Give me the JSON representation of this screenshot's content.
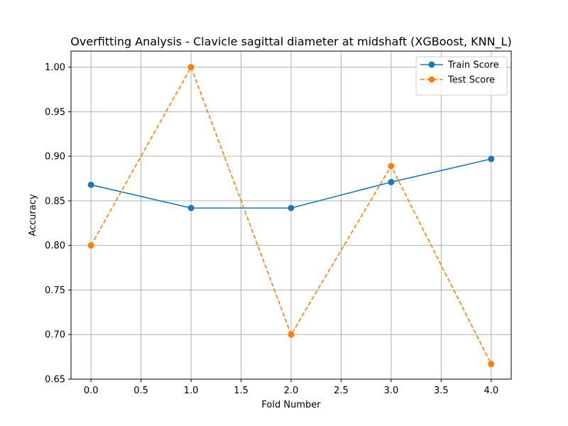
{
  "chart_data": {
    "type": "line",
    "title": "Overfitting Analysis - Clavicle sagittal diameter at midshaft (XGBoost, KNN_L)",
    "xlabel": "Fold Number",
    "ylabel": "Accuracy",
    "xlim": [
      -0.2,
      4.2
    ],
    "ylim": [
      0.65,
      1.018
    ],
    "xticks": [
      0.0,
      0.5,
      1.0,
      1.5,
      2.0,
      2.5,
      3.0,
      3.5,
      4.0
    ],
    "xtick_labels": [
      "0.0",
      "0.5",
      "1.0",
      "1.5",
      "2.0",
      "2.5",
      "3.0",
      "3.5",
      "4.0"
    ],
    "yticks": [
      0.65,
      0.7,
      0.75,
      0.8,
      0.85,
      0.9,
      0.95,
      1.0
    ],
    "ytick_labels": [
      "0.65",
      "0.70",
      "0.75",
      "0.80",
      "0.85",
      "0.90",
      "0.95",
      "1.00"
    ],
    "grid": true,
    "legend_position": "top-right",
    "x": [
      0,
      1,
      2,
      3,
      4
    ],
    "series": [
      {
        "name": "Train Score",
        "values": [
          0.868,
          0.842,
          0.842,
          0.871,
          0.897
        ],
        "color": "#1f77b4",
        "style": "solid",
        "marker": "circle"
      },
      {
        "name": "Test Score",
        "values": [
          0.8,
          1.0,
          0.7,
          0.889,
          0.667
        ],
        "color": "#ff7f0e",
        "style": "dashed",
        "marker": "circle"
      }
    ]
  }
}
